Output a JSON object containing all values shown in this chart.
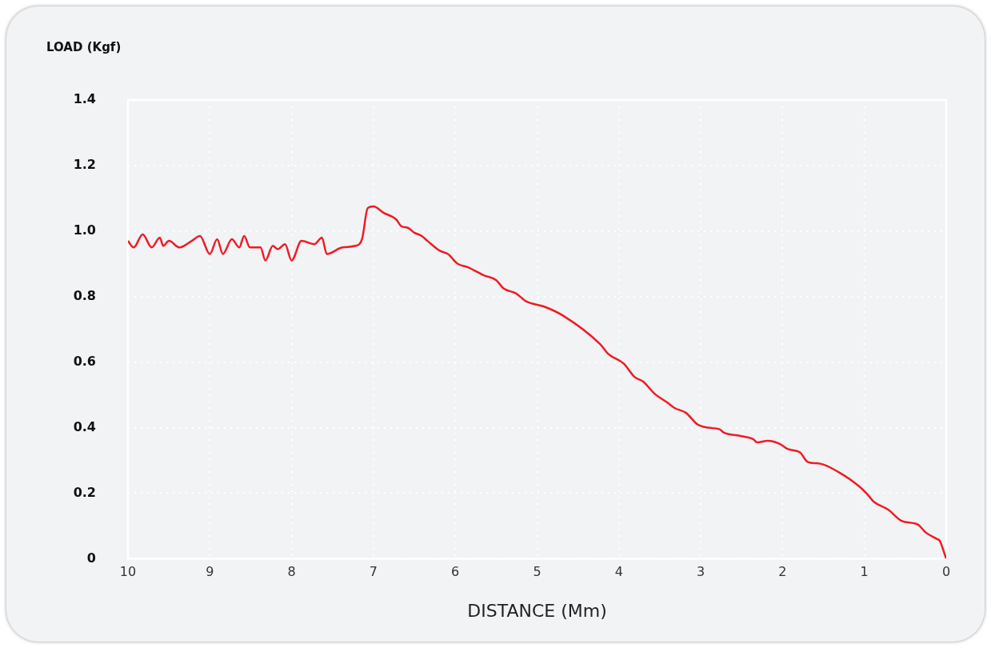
{
  "chart_data": {
    "type": "line",
    "xlabel": "DISTANCE (Mm)",
    "ylabel": "LOAD (Kgf)",
    "xlim": [
      10,
      0
    ],
    "xticks": [
      10,
      9,
      8,
      7,
      6,
      5,
      4,
      3,
      2,
      1,
      0
    ],
    "ylim": [
      0,
      1.4
    ],
    "yticks": [
      0,
      0.2,
      0.4,
      0.6,
      0.8,
      {
        "value": 1,
        "label": "1.0"
      },
      1.2,
      1.4
    ],
    "grid": true,
    "legend": false,
    "marker": "none",
    "line_style": "solid",
    "x": [
      10,
      9.93,
      9.82,
      9.71,
      9.61,
      9.57,
      9.5,
      9.37,
      9.22,
      9.12,
      9,
      8.91,
      8.84,
      8.73,
      8.64,
      8.58,
      8.51,
      8.38,
      8.32,
      8.23,
      8.17,
      8.08,
      8,
      7.88,
      7.72,
      7.63,
      7.57,
      7.38,
      7.22,
      7.14,
      7.07,
      7,
      6.87,
      6.78,
      6.72,
      6.66,
      6.58,
      6.5,
      6.41,
      6.34,
      6.19,
      6.09,
      5.97,
      5.85,
      5.65,
      5.5,
      5.41,
      5.26,
      5.13,
      4.92,
      4.67,
      4.23,
      4.13,
      3.94,
      3.81,
      3.7,
      3.57,
      3.4,
      3.32,
      3.18,
      3.04,
      2.91,
      2.77,
      2.72,
      2.52,
      2.36,
      2.31,
      2.18,
      2.03,
      1.94,
      1.79,
      1.69,
      1.54,
      1.32,
      1.06,
      0.94,
      0.89,
      0.71,
      0.54,
      0.35,
      0.25,
      0.11,
      0.08,
      0
    ],
    "series": [
      {
        "color": "#ee1c25",
        "values": [
          0.97,
          0.95,
          0.99,
          0.95,
          0.98,
          0.955,
          0.97,
          0.95,
          0.97,
          0.985,
          0.93,
          0.975,
          0.93,
          0.975,
          0.95,
          0.985,
          0.95,
          0.95,
          0.91,
          0.955,
          0.945,
          0.96,
          0.91,
          0.97,
          0.96,
          0.98,
          0.93,
          0.95,
          0.955,
          0.975,
          1.07,
          1.075,
          1.055,
          1.045,
          1.035,
          1.015,
          1.01,
          0.995,
          0.985,
          0.97,
          0.94,
          0.93,
          0.9,
          0.89,
          0.865,
          0.85,
          0.825,
          0.81,
          0.785,
          0.77,
          0.74,
          0.655,
          0.625,
          0.595,
          0.555,
          0.54,
          0.505,
          0.475,
          0.46,
          0.445,
          0.41,
          0.4,
          0.395,
          0.385,
          0.375,
          0.365,
          0.355,
          0.36,
          0.35,
          0.335,
          0.325,
          0.295,
          0.29,
          0.265,
          0.22,
          0.19,
          0.175,
          0.15,
          0.115,
          0.105,
          0.08,
          0.06,
          0.055,
          0
        ]
      }
    ]
  }
}
